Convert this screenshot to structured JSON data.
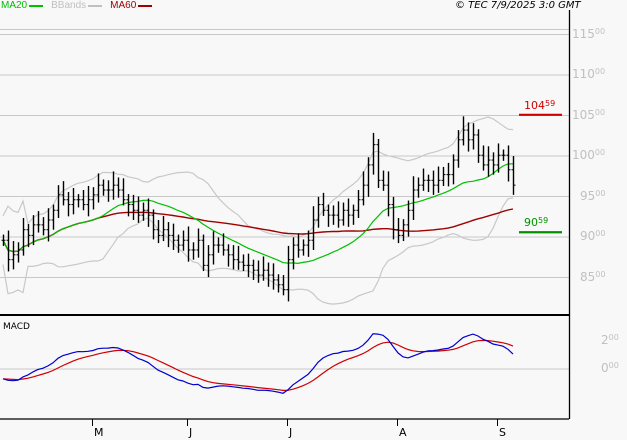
{
  "legend": [
    {
      "label": "MA20",
      "color": "#00c000"
    },
    {
      "label": "BBands",
      "color": "#c0c0c0"
    },
    {
      "label": "MA60",
      "color": "#a00000"
    }
  ],
  "copyright": "© TEC 7/9/2025 3:0 GMT",
  "chart_data": [
    {
      "type": "ohlc-bar",
      "panel": "price",
      "ylim": [
        80,
        117
      ],
      "yticks": [
        {
          "int": "115",
          "dec": "00"
        },
        {
          "int": "110",
          "dec": "00"
        },
        {
          "int": "105",
          "dec": "00"
        },
        {
          "int": "100",
          "dec": "00"
        },
        {
          "int": "95",
          "dec": "00"
        },
        {
          "int": "90",
          "dec": "00"
        },
        {
          "int": "85",
          "dec": "00"
        }
      ],
      "ytick_values": [
        115,
        110,
        105,
        100,
        95,
        90,
        85
      ],
      "grid": true,
      "xticks": [
        "M",
        "J",
        "J",
        "A",
        "S"
      ],
      "xtick_bar_index": [
        18,
        37,
        57,
        79,
        99
      ],
      "close": [
        89.6,
        87.2,
        87.8,
        88.4,
        90.9,
        90.2,
        91.5,
        91.5,
        90.9,
        92.1,
        93.3,
        95.2,
        94.6,
        94.0,
        94.6,
        94.6,
        94.0,
        94.6,
        95.2,
        96.4,
        95.8,
        95.8,
        96.4,
        95.8,
        94.6,
        94.0,
        93.3,
        92.7,
        93.3,
        92.7,
        90.9,
        90.2,
        90.9,
        90.2,
        89.6,
        89.0,
        89.6,
        88.4,
        88.4,
        89.6,
        86.5,
        87.8,
        89.0,
        89.0,
        88.4,
        87.8,
        87.2,
        86.9,
        86.5,
        86.5,
        85.9,
        85.3,
        85.9,
        85.3,
        84.7,
        84.1,
        83.5,
        87.2,
        89.0,
        88.4,
        89.0,
        89.6,
        92.1,
        94.0,
        93.3,
        92.7,
        92.7,
        92.1,
        93.3,
        92.7,
        93.3,
        94.6,
        96.4,
        98.9,
        101.4,
        97.0,
        96.4,
        94.0,
        90.9,
        90.2,
        91.5,
        93.3,
        95.8,
        96.4,
        97.0,
        97.0,
        96.4,
        97.0,
        97.7,
        97.7,
        99.5,
        102.0,
        103.2,
        102.0,
        102.6,
        100.1,
        98.9,
        99.5,
        98.9,
        100.1,
        100.1,
        98.3,
        96.4
      ],
      "indicators": [
        "MA20",
        "BBands",
        "MA60"
      ],
      "levels": [
        {
          "value": 104.59,
          "int": "104",
          "dec": "59",
          "color": "#d00000"
        },
        {
          "value": 90.59,
          "int": "90",
          "dec": "59",
          "color": "#009000"
        }
      ]
    },
    {
      "type": "line",
      "panel": "MACD",
      "title": "MACD",
      "yticks": [
        {
          "int": "2",
          "dec": "00"
        },
        {
          "int": "0",
          "dec": "00"
        }
      ],
      "ytick_values": [
        2,
        0
      ],
      "series_colors": {
        "macd": "#0000d0",
        "signal": "#d00000"
      }
    }
  ]
}
